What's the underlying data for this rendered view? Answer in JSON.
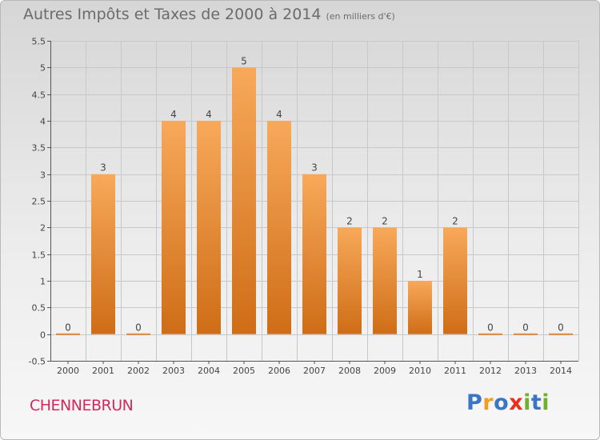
{
  "title": {
    "main": "Autres Impôts et Taxes de 2000 à 2014",
    "unit": "(en milliers d'€)"
  },
  "commune": "CHENNEBRUN",
  "logo": {
    "text": "Proxiti",
    "letters": [
      "P",
      "r",
      "o",
      "x",
      "i",
      "t",
      "i"
    ],
    "colors": [
      "#3a76c4",
      "#f0a020",
      "#3a76c4",
      "#e83020",
      "#70b030",
      "#3a76c4",
      "#70b030"
    ]
  },
  "colors": {
    "bar_light": "#f7a95a",
    "bar_dark": "#cf6d17",
    "axis": "#555555",
    "grid": "#c8c8c8"
  },
  "chart_data": {
    "type": "bar",
    "title": "Autres Impôts et Taxes de 2000 à 2014",
    "subtitle": "(en milliers d'€)",
    "categories": [
      "2000",
      "2001",
      "2002",
      "2003",
      "2004",
      "2005",
      "2006",
      "2007",
      "2008",
      "2009",
      "2010",
      "2011",
      "2012",
      "2013",
      "2014"
    ],
    "values": [
      0,
      3,
      0,
      4,
      4,
      5,
      4,
      3,
      2,
      2,
      1,
      2,
      0,
      0,
      0
    ],
    "data_labels": [
      "0",
      "3",
      "0",
      "4",
      "4",
      "5",
      "4",
      "3",
      "2",
      "2",
      "1",
      "2",
      "0",
      "0",
      "0"
    ],
    "ylim": [
      -0.5,
      5.5
    ],
    "yticks": [
      -0.5,
      0,
      0.5,
      1,
      1.5,
      2,
      2.5,
      3,
      3.5,
      4,
      4.5,
      5,
      5.5
    ],
    "ytick_labels": [
      "-0.5",
      "0",
      "0.5",
      "1",
      "1.5",
      "2",
      "2.5",
      "3",
      "3.5",
      "4",
      "4.5",
      "5",
      "5.5"
    ],
    "xlabel": "",
    "ylabel": "",
    "grid": true,
    "legend": "none"
  }
}
